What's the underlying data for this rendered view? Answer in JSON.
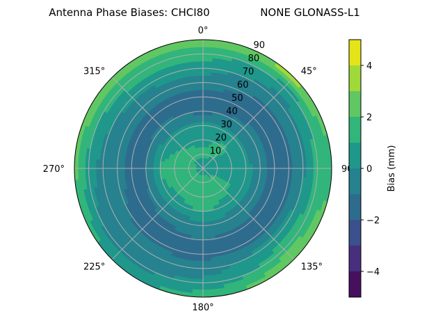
{
  "chart_data": {
    "type": "heatmap",
    "projection": "polar",
    "title_left": "Antenna Phase Biases: CHCI80",
    "title_right": "NONE GLONASS-L1",
    "theta_zero": "north",
    "theta_direction": "clockwise",
    "theta_ticks": [
      "0°",
      "45°",
      "90°",
      "135°",
      "180°",
      "225°",
      "270°",
      "315°"
    ],
    "theta_tick_values": [
      0,
      45,
      90,
      135,
      180,
      225,
      270,
      315
    ],
    "r_ticks": [
      "10",
      "20",
      "30",
      "40",
      "50",
      "60",
      "70",
      "80",
      "90"
    ],
    "r_tick_values": [
      10,
      20,
      30,
      40,
      50,
      60,
      70,
      80,
      90
    ],
    "rlim": [
      0,
      90
    ],
    "grid": true,
    "colorbar": {
      "label": "Bias (mm)",
      "levels": [
        -5,
        -4,
        -3,
        -2,
        -1,
        0,
        1,
        2,
        3,
        4,
        5
      ],
      "ticks": [
        "4",
        "2",
        "0",
        "−2",
        "−4"
      ],
      "tick_values": [
        4,
        2,
        0,
        -2,
        -4
      ],
      "colors": [
        "#46105f",
        "#472f7d",
        "#3b518b",
        "#2e6c8e",
        "#26828e",
        "#1f988b",
        "#31b57b",
        "#60c762",
        "#a0da39",
        "#e5e419"
      ],
      "colormap": "viridis"
    },
    "azimuth": [
      0,
      45,
      90,
      135,
      180,
      225,
      270,
      315
    ],
    "zenith": [
      0,
      10,
      20,
      30,
      40,
      50,
      60,
      70,
      80,
      90
    ],
    "values": [
      [
        0.5,
        0.5,
        0.5,
        0.5,
        0.5,
        0.5,
        0.5,
        0.5
      ],
      [
        1.2,
        1.0,
        0.6,
        1.2,
        1.5,
        1.5,
        1.5,
        1.2
      ],
      [
        0.8,
        1.2,
        0.5,
        1.3,
        1.5,
        1.5,
        1.5,
        1.0
      ],
      [
        0.3,
        0.2,
        0.5,
        0.5,
        1.2,
        0.5,
        1.2,
        0.2
      ],
      [
        -1.3,
        -0.8,
        -0.8,
        -0.5,
        -0.5,
        -0.7,
        -1.2,
        -0.8
      ],
      [
        -1.3,
        -1.3,
        -1.3,
        -1.3,
        -1.0,
        -1.4,
        -1.3,
        -1.4
      ],
      [
        -0.6,
        -1.2,
        -1.2,
        -1.3,
        -1.4,
        -1.2,
        -0.6,
        -0.6
      ],
      [
        0.5,
        -0.5,
        -0.3,
        0.6,
        -0.5,
        -0.5,
        -0.5,
        0.3
      ],
      [
        1.5,
        0.5,
        1.5,
        1.5,
        0.3,
        -0.5,
        0.5,
        1.5
      ],
      [
        2.5,
        3.5,
        1.5,
        3.2,
        1.5,
        0.8,
        2.5,
        2.7
      ]
    ]
  }
}
